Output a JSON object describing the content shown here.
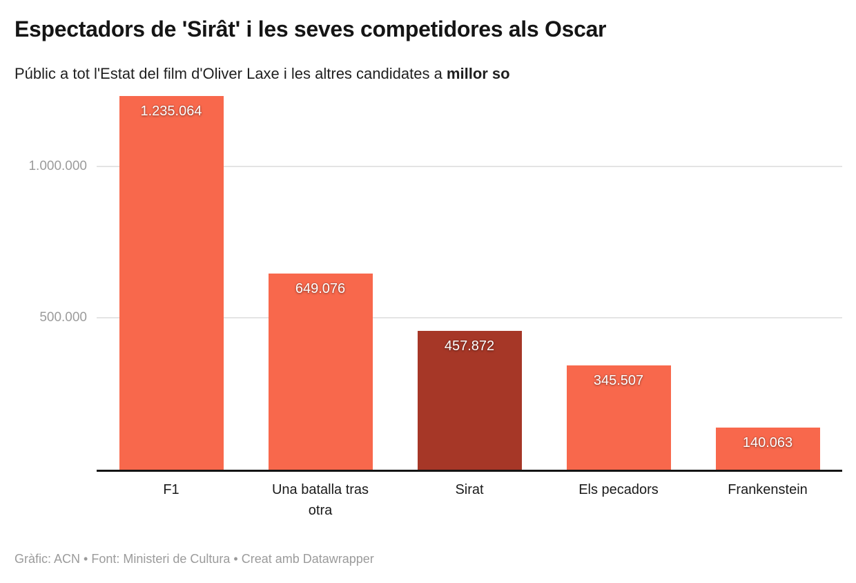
{
  "header": {
    "title": "Espectadors de 'Sirât' i les seves competidores als Oscar",
    "subtitle_regular": "Públic a tot l'Estat del film d'Oliver Laxe i les altres candidates a ",
    "subtitle_bold": "millor so"
  },
  "chart_data": {
    "type": "bar",
    "title": "Espectadors de 'Sirât' i les seves competidores als Oscar",
    "categories": [
      "F1",
      "Una batalla tras otra",
      "Sirat",
      "Els pecadors",
      "Frankenstein"
    ],
    "values": [
      1235064,
      649076,
      457872,
      345507,
      140063
    ],
    "value_labels": [
      "1.235.064",
      "649.076",
      "457.872",
      "345.507",
      "140.063"
    ],
    "highlight_index": 2,
    "highlight_category": "Sirat",
    "bar_color": "#f8684c",
    "highlight_color": "#a63727",
    "y_ticks": [
      {
        "value": 500000,
        "label": "500.000"
      },
      {
        "value": 1000000,
        "label": "1.000.000"
      }
    ],
    "ylim": [
      0,
      1260000
    ],
    "grid": true,
    "gridline_color": "#e4e4e4",
    "axis_line_color": "#141414",
    "legend_position": "none",
    "xlabel": "",
    "ylabel": ""
  },
  "footer": {
    "text": "Gràfic: ACN • Font: Ministeri de Cultura • Creat amb Datawrapper"
  }
}
